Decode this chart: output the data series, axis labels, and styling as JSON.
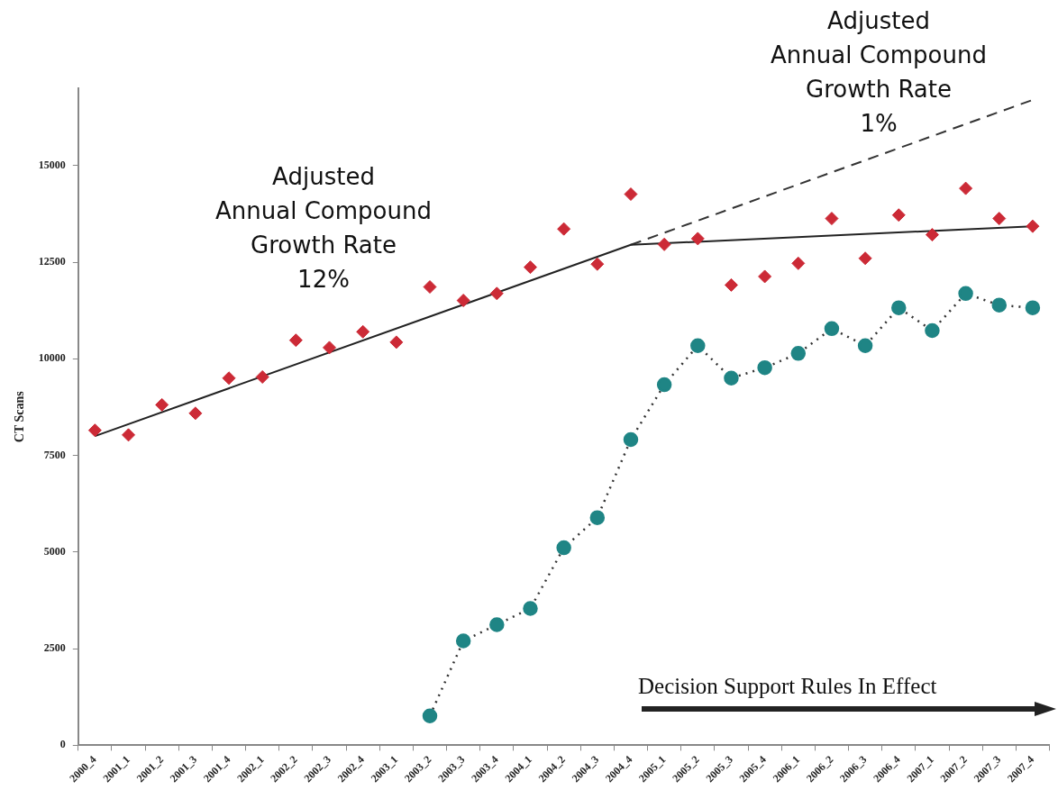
{
  "chart_data": {
    "type": "scatter",
    "ylabel": "CT Scans",
    "categories": [
      "2000_4",
      "2001_1",
      "2001_2",
      "2001_3",
      "2001_4",
      "2002_1",
      "2002_2",
      "2002_3",
      "2002_4",
      "2003_1",
      "2003_2",
      "2003_3",
      "2003_4",
      "2004_1",
      "2004_2",
      "2004_3",
      "2004_4",
      "2005_1",
      "2005_2",
      "2005_3",
      "2005_4",
      "2006_1",
      "2006_2",
      "2006_3",
      "2006_4",
      "2007_1",
      "2007_2",
      "2007_3",
      "2007_4"
    ],
    "ylim": [
      0,
      17000
    ],
    "yticks": [
      0,
      2500,
      5000,
      7500,
      10000,
      12500,
      15000
    ],
    "grid": false,
    "annotations": [
      "Adjusted\nAnnual Compound\nGrowth Rate\n12%",
      "Adjusted\nAnnual Compound\nGrowth Rate\n1%",
      "Decision Support Rules In Effect"
    ],
    "series": [
      {
        "color": "#cc2a36",
        "marker": "diamond",
        "values": [
          8150,
          8030,
          8810,
          8590,
          9500,
          9530,
          10480,
          10290,
          10700,
          10430,
          11860,
          11510,
          11690,
          12370,
          13360,
          12450,
          14260,
          12960,
          13110,
          11910,
          12130,
          12470,
          13630,
          12600,
          13720,
          13210,
          14410,
          13630,
          13430
        ]
      },
      {
        "type": "line",
        "color": "#1f8585",
        "marker": "circle",
        "line_style": "dotted",
        "values": [
          null,
          null,
          null,
          null,
          null,
          null,
          null,
          null,
          null,
          null,
          760,
          2700,
          3120,
          3540,
          5110,
          5890,
          7910,
          9330,
          10340,
          9500,
          9770,
          10140,
          10780,
          10340,
          11320,
          10730,
          11690,
          11390,
          11320
        ]
      },
      {
        "type": "line",
        "color": "#222222",
        "marker": "none",
        "line_style": "solid",
        "values": [
          8000,
          null,
          null,
          null,
          null,
          null,
          null,
          null,
          null,
          null,
          null,
          null,
          null,
          null,
          null,
          null,
          12950,
          null,
          null,
          null,
          null,
          null,
          null,
          null,
          null,
          null,
          null,
          null,
          13430
        ]
      },
      {
        "type": "line",
        "color": "#333333",
        "marker": "none",
        "line_style": "dashed",
        "values": [
          null,
          null,
          null,
          null,
          null,
          null,
          null,
          null,
          null,
          null,
          null,
          null,
          null,
          null,
          null,
          null,
          12950,
          null,
          null,
          null,
          null,
          null,
          null,
          null,
          null,
          null,
          null,
          null,
          16700
        ]
      }
    ]
  }
}
